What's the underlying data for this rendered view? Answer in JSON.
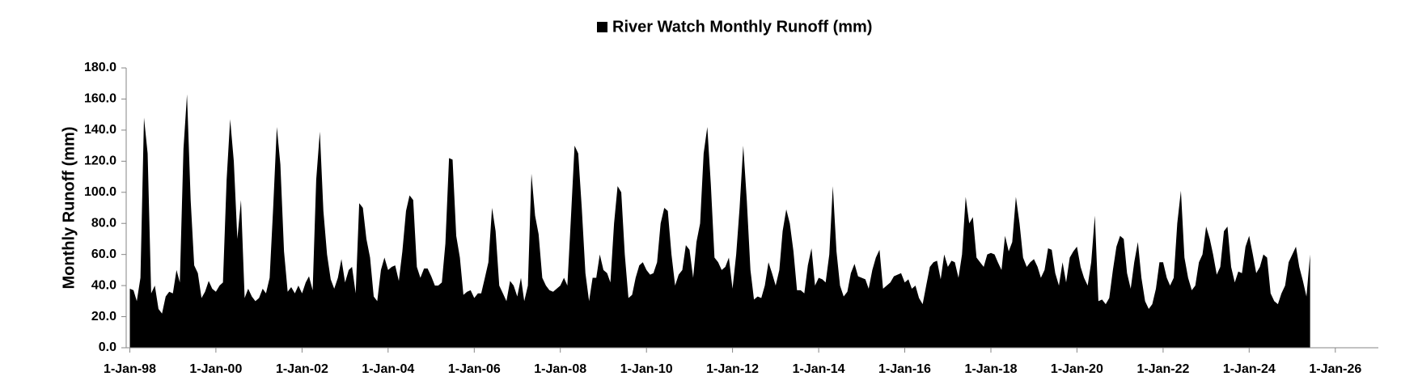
{
  "chart_data": {
    "type": "area",
    "series": [
      {
        "name": "River Watch Monthly Runoff (mm)",
        "color": "#000000",
        "values": [
          38,
          37,
          30,
          45,
          148,
          125,
          35,
          40,
          25,
          22,
          33,
          36,
          35,
          50,
          42,
          128,
          163,
          95,
          53,
          48,
          32,
          36,
          43,
          38,
          36,
          40,
          42,
          108,
          147,
          120,
          70,
          95,
          32,
          38,
          33,
          30,
          32,
          38,
          35,
          45,
          90,
          142,
          118,
          62,
          36,
          39,
          35,
          40,
          35,
          42,
          46,
          37,
          108,
          139,
          88,
          60,
          44,
          38,
          45,
          57,
          42,
          50,
          52,
          35,
          93,
          90,
          70,
          58,
          33,
          30,
          50,
          58,
          50,
          52,
          53,
          43,
          62,
          88,
          98,
          95,
          52,
          45,
          51,
          51,
          46,
          40,
          40,
          42,
          67,
          122,
          121,
          72,
          58,
          34,
          36,
          37,
          32,
          35,
          35,
          45,
          55,
          90,
          75,
          40,
          35,
          30,
          43,
          40,
          33,
          45,
          30,
          40,
          112,
          85,
          73,
          45,
          40,
          37,
          36,
          38,
          40,
          45,
          40,
          85,
          130,
          125,
          90,
          48,
          30,
          45,
          45,
          60,
          50,
          48,
          42,
          80,
          104,
          100,
          60,
          32,
          34,
          45,
          53,
          55,
          50,
          47,
          48,
          55,
          80,
          90,
          88,
          60,
          40,
          47,
          50,
          66,
          63,
          45,
          68,
          80,
          125,
          142,
          105,
          58,
          55,
          50,
          52,
          58,
          38,
          60,
          90,
          130,
          95,
          50,
          31,
          33,
          32,
          40,
          55,
          48,
          40,
          50,
          75,
          89,
          80,
          62,
          37,
          37,
          35,
          53,
          64,
          40,
          45,
          44,
          42,
          60,
          104,
          62,
          40,
          33,
          36,
          48,
          54,
          46,
          45,
          44,
          38,
          50,
          58,
          63,
          38,
          40,
          42,
          46,
          47,
          48,
          42,
          44,
          38,
          40,
          32,
          28,
          40,
          52,
          55,
          56,
          44,
          60,
          52,
          56,
          55,
          45,
          60,
          97,
          80,
          84,
          58,
          55,
          52,
          60,
          61,
          60,
          55,
          50,
          72,
          62,
          68,
          97,
          80,
          58,
          52,
          55,
          57,
          52,
          45,
          50,
          64,
          63,
          48,
          40,
          55,
          42,
          58,
          62,
          65,
          52,
          45,
          40,
          55,
          85,
          30,
          31,
          28,
          32,
          50,
          65,
          72,
          70,
          48,
          38,
          55,
          68,
          45,
          30,
          25,
          28,
          38,
          55,
          55,
          45,
          40,
          45,
          80,
          101,
          58,
          45,
          37,
          40,
          55,
          60,
          78,
          70,
          60,
          47,
          52,
          75,
          78,
          52,
          42,
          49,
          48,
          65,
          72,
          60,
          48,
          52,
          60,
          58,
          35,
          30,
          28,
          35,
          40,
          55,
          60,
          65,
          52,
          43,
          33,
          60
        ]
      }
    ],
    "x": [
      "1998-01-01",
      "1998-02-01",
      "1998-03-01",
      "1998-04-01",
      "1998-05-01",
      "1998-06-01",
      "1998-07-01",
      "1998-08-01",
      "1998-09-01",
      "1998-10-01",
      "1998-11-01",
      "1998-12-01",
      "1999-01-01",
      "1999-02-01",
      "1999-03-01",
      "1999-04-01",
      "1999-05-01",
      "1999-06-01",
      "1999-07-01",
      "1999-08-01",
      "1999-09-01",
      "1999-10-01",
      "1999-11-01",
      "1999-12-01",
      "2000-01-01",
      "2000-02-01",
      "2000-03-01",
      "2000-04-01",
      "2000-05-01",
      "2000-06-01",
      "2000-07-01",
      "2000-08-01",
      "2000-09-01",
      "2000-10-01",
      "2000-11-01",
      "2000-12-01",
      "2001-01-01",
      "2001-02-01",
      "2001-03-01",
      "2001-04-01",
      "2001-05-01",
      "2001-06-01",
      "2001-07-01",
      "2001-08-01",
      "2001-09-01",
      "2001-10-01",
      "2001-11-01",
      "2001-12-01",
      "2002-01-01",
      "2002-02-01",
      "2002-03-01",
      "2002-04-01",
      "2002-05-01",
      "2002-06-01",
      "2002-07-01",
      "2002-08-01",
      "2002-09-01",
      "2002-10-01",
      "2002-11-01",
      "2002-12-01",
      "2003-01-01",
      "2003-02-01",
      "2003-03-01",
      "2003-04-01",
      "2003-05-01",
      "2003-06-01",
      "2003-07-01",
      "2003-08-01",
      "2003-09-01",
      "2003-10-01",
      "2003-11-01",
      "2003-12-01",
      "2004-01-01",
      "2004-02-01",
      "2004-03-01",
      "2004-04-01",
      "2004-05-01",
      "2004-06-01",
      "2004-07-01",
      "2004-08-01",
      "2004-09-01",
      "2004-10-01",
      "2004-11-01",
      "2004-12-01",
      "2005-01-01",
      "2005-02-01",
      "2005-03-01",
      "2005-04-01",
      "2005-05-01",
      "2005-06-01",
      "2005-07-01",
      "2005-08-01",
      "2005-09-01",
      "2005-10-01",
      "2005-11-01",
      "2005-12-01",
      "2006-01-01",
      "2006-02-01",
      "2006-03-01",
      "2006-04-01",
      "2006-05-01",
      "2006-06-01",
      "2006-07-01",
      "2006-08-01",
      "2006-09-01",
      "2006-10-01",
      "2006-11-01",
      "2006-12-01",
      "2007-01-01",
      "2007-02-01",
      "2007-03-01",
      "2007-04-01",
      "2007-05-01",
      "2007-06-01",
      "2007-07-01",
      "2007-08-01",
      "2007-09-01",
      "2007-10-01",
      "2007-11-01",
      "2007-12-01",
      "2008-01-01",
      "2008-02-01",
      "2008-03-01",
      "2008-04-01",
      "2008-05-01",
      "2008-06-01",
      "2008-07-01",
      "2008-08-01",
      "2008-09-01",
      "2008-10-01",
      "2008-11-01",
      "2008-12-01",
      "2009-01-01",
      "2009-02-01",
      "2009-03-01",
      "2009-04-01",
      "2009-05-01",
      "2009-06-01",
      "2009-07-01",
      "2009-08-01",
      "2009-09-01",
      "2009-10-01",
      "2009-11-01",
      "2009-12-01",
      "2010-01-01",
      "2010-02-01",
      "2010-03-01",
      "2010-04-01",
      "2010-05-01",
      "2010-06-01",
      "2010-07-01",
      "2010-08-01",
      "2010-09-01",
      "2010-10-01",
      "2010-11-01",
      "2010-12-01",
      "2011-01-01",
      "2011-02-01",
      "2011-03-01",
      "2011-04-01",
      "2011-05-01",
      "2011-06-01",
      "2011-07-01",
      "2011-08-01",
      "2011-09-01",
      "2011-10-01",
      "2011-11-01",
      "2011-12-01",
      "2012-01-01",
      "2012-02-01",
      "2012-03-01",
      "2012-04-01",
      "2012-05-01",
      "2012-06-01",
      "2012-07-01",
      "2012-08-01",
      "2012-09-01",
      "2012-10-01",
      "2012-11-01",
      "2012-12-01",
      "2013-01-01",
      "2013-02-01",
      "2013-03-01",
      "2013-04-01",
      "2013-05-01",
      "2013-06-01",
      "2013-07-01",
      "2013-08-01",
      "2013-09-01",
      "2013-10-01",
      "2013-11-01",
      "2013-12-01",
      "2014-01-01",
      "2014-02-01",
      "2014-03-01",
      "2014-04-01",
      "2014-05-01",
      "2014-06-01",
      "2014-07-01",
      "2014-08-01",
      "2014-09-01",
      "2014-10-01",
      "2014-11-01",
      "2014-12-01",
      "2015-01-01",
      "2015-02-01",
      "2015-03-01",
      "2015-04-01",
      "2015-05-01",
      "2015-06-01",
      "2015-07-01",
      "2015-08-01",
      "2015-09-01",
      "2015-10-01",
      "2015-11-01",
      "2015-12-01",
      "2016-01-01",
      "2016-02-01",
      "2016-03-01",
      "2016-04-01",
      "2016-05-01",
      "2016-06-01",
      "2016-07-01",
      "2016-08-01",
      "2016-09-01",
      "2016-10-01",
      "2016-11-01",
      "2016-12-01",
      "2017-01-01",
      "2017-02-01",
      "2017-03-01",
      "2017-04-01",
      "2017-05-01",
      "2017-06-01",
      "2017-07-01",
      "2017-08-01",
      "2017-09-01",
      "2017-10-01",
      "2017-11-01",
      "2017-12-01",
      "2018-01-01",
      "2018-02-01",
      "2018-03-01",
      "2018-04-01",
      "2018-05-01",
      "2018-06-01",
      "2018-07-01",
      "2018-08-01",
      "2018-09-01",
      "2018-10-01",
      "2018-11-01",
      "2018-12-01",
      "2019-01-01",
      "2019-02-01",
      "2019-03-01",
      "2019-04-01",
      "2019-05-01",
      "2019-06-01",
      "2019-07-01",
      "2019-08-01",
      "2019-09-01",
      "2019-10-01",
      "2019-11-01",
      "2019-12-01",
      "2020-01-01",
      "2020-02-01",
      "2020-03-01",
      "2020-04-01",
      "2020-05-01",
      "2020-06-01",
      "2020-07-01",
      "2020-08-01",
      "2020-09-01",
      "2020-10-01",
      "2020-11-01",
      "2020-12-01",
      "2021-01-01",
      "2021-02-01",
      "2021-03-01",
      "2021-04-01",
      "2021-05-01",
      "2021-06-01",
      "2021-07-01",
      "2021-08-01",
      "2021-09-01",
      "2021-10-01",
      "2021-11-01",
      "2021-12-01",
      "2022-01-01",
      "2022-02-01",
      "2022-03-01",
      "2022-04-01",
      "2022-05-01",
      "2022-06-01",
      "2022-07-01",
      "2022-08-01",
      "2022-09-01",
      "2022-10-01",
      "2022-11-01",
      "2022-12-01",
      "2023-01-01",
      "2023-02-01",
      "2023-03-01",
      "2023-04-01",
      "2023-05-01",
      "2023-06-01",
      "2023-07-01",
      "2023-08-01",
      "2023-09-01",
      "2023-10-01",
      "2023-11-01",
      "2023-12-01",
      "2024-01-01",
      "2024-02-01",
      "2024-03-01",
      "2024-04-01",
      "2024-05-01",
      "2024-06-01",
      "2024-07-01",
      "2024-08-01",
      "2024-09-01",
      "2024-10-01",
      "2024-11-01",
      "2024-12-01",
      "2025-01-01",
      "2025-02-01",
      "2025-03-01",
      "2025-04-01",
      "2025-05-01",
      "2025-06-01"
    ],
    "y_label": "Monthly Runoff (mm)",
    "xlim": [
      "1997-12-01",
      "2027-01-01"
    ],
    "xticks": [
      {
        "value": "1998-01-01",
        "label": "1-Jan-98"
      },
      {
        "value": "2000-01-01",
        "label": "1-Jan-00"
      },
      {
        "value": "2002-01-01",
        "label": "1-Jan-02"
      },
      {
        "value": "2004-01-01",
        "label": "1-Jan-04"
      },
      {
        "value": "2006-01-01",
        "label": "1-Jan-06"
      },
      {
        "value": "2008-01-01",
        "label": "1-Jan-08"
      },
      {
        "value": "2010-01-01",
        "label": "1-Jan-10"
      },
      {
        "value": "2012-01-01",
        "label": "1-Jan-12"
      },
      {
        "value": "2014-01-01",
        "label": "1-Jan-14"
      },
      {
        "value": "2016-01-01",
        "label": "1-Jan-16"
      },
      {
        "value": "2018-01-01",
        "label": "1-Jan-18"
      },
      {
        "value": "2020-01-01",
        "label": "1-Jan-20"
      },
      {
        "value": "2022-01-01",
        "label": "1-Jan-22"
      },
      {
        "value": "2024-01-01",
        "label": "1-Jan-24"
      },
      {
        "value": "2026-01-01",
        "label": "1-Jan-26"
      }
    ],
    "ylim": [
      0,
      180
    ],
    "yticks": [
      {
        "value": 0,
        "label": "0.0"
      },
      {
        "value": 20,
        "label": "20.0"
      },
      {
        "value": 40,
        "label": "40.0"
      },
      {
        "value": 60,
        "label": "60.0"
      },
      {
        "value": 80,
        "label": "80.0"
      },
      {
        "value": 100,
        "label": "100.0"
      },
      {
        "value": 120,
        "label": "120.0"
      },
      {
        "value": 140,
        "label": "140.0"
      },
      {
        "value": 160,
        "label": "160.0"
      },
      {
        "value": 180,
        "label": "180.0"
      }
    ],
    "grid": false,
    "legend": "top"
  }
}
